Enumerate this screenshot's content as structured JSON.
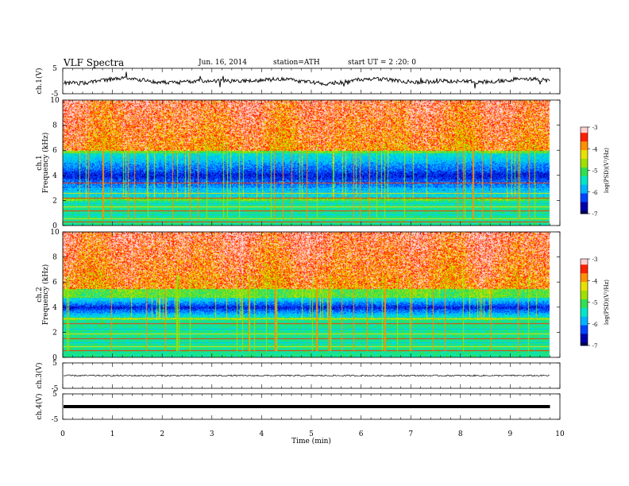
{
  "header": {
    "title": "VLF  Spectra",
    "date": "Jun. 16, 2014",
    "station": "station=ATH",
    "start_ut": "start  UT  =   2  :20: 0"
  },
  "chart_data": [
    {
      "type": "line",
      "name": "ch1-waveform",
      "ylabel": "ch.1(V)",
      "ylim": [
        -5,
        5
      ],
      "yticks": [
        "5",
        "-5"
      ],
      "x_range_min": [
        0,
        9.8
      ],
      "baseline_value": 0,
      "fluctuation_amplitude": 1.6
    },
    {
      "type": "heatmap",
      "name": "ch1-spectrogram",
      "ylabel_line1": "ch.1",
      "ylabel_line2": "Frequency  (kHz)",
      "ylim": [
        0,
        10
      ],
      "yticks": [
        "0",
        "2",
        "4",
        "6",
        "8",
        "10"
      ],
      "colorbar": {
        "label": "log(PSD)(V²/Hz)",
        "range": [
          -7,
          -3
        ],
        "ticks": [
          "-3",
          "-4",
          "-5",
          "-6",
          "-7"
        ]
      },
      "colormap": [
        "#000055",
        "#0000aa",
        "#0044ff",
        "#00b4ff",
        "#00e6c8",
        "#30e050",
        "#a0e000",
        "#e8e000",
        "#ff9000",
        "#ff2000",
        "#ffd0d0"
      ],
      "bands_khz": {
        "high_activity_above": 6.0,
        "quiet_band": [
          2.2,
          5.8
        ],
        "low_lines_below": 2.0
      }
    },
    {
      "type": "heatmap",
      "name": "ch2-spectrogram",
      "ylabel_line1": "ch.2",
      "ylabel_line2": "Frequency  (kHz)",
      "ylim": [
        0,
        10
      ],
      "yticks": [
        "0",
        "2",
        "4",
        "6",
        "8",
        "10"
      ],
      "colorbar": {
        "label": "log(PSD)(V²/Hz)",
        "range": [
          -7,
          -3
        ],
        "ticks": [
          "-3",
          "-4",
          "-5",
          "-6",
          "-7"
        ]
      },
      "bands_khz": {
        "high_activity_above": 5.5,
        "quiet_band": [
          3.2,
          4.8
        ],
        "low_lines_below": 3.0
      }
    },
    {
      "type": "line",
      "name": "ch3-waveform",
      "ylabel": "ch.3(V)",
      "ylim": [
        -5,
        5
      ],
      "yticks": [
        "5",
        "-5"
      ],
      "baseline_value": 0
    },
    {
      "type": "line",
      "name": "ch4-waveform",
      "ylabel": "ch.4(V)",
      "ylim": [
        -5,
        5
      ],
      "yticks": [
        "5",
        "-5"
      ],
      "baseline_value": 0
    }
  ],
  "xaxis": {
    "label": "Time  (min)",
    "range": [
      0,
      10
    ],
    "ticks": [
      "0",
      "1",
      "2",
      "3",
      "4",
      "5",
      "6",
      "7",
      "8",
      "9",
      "10"
    ],
    "data_end_min": 9.8
  }
}
